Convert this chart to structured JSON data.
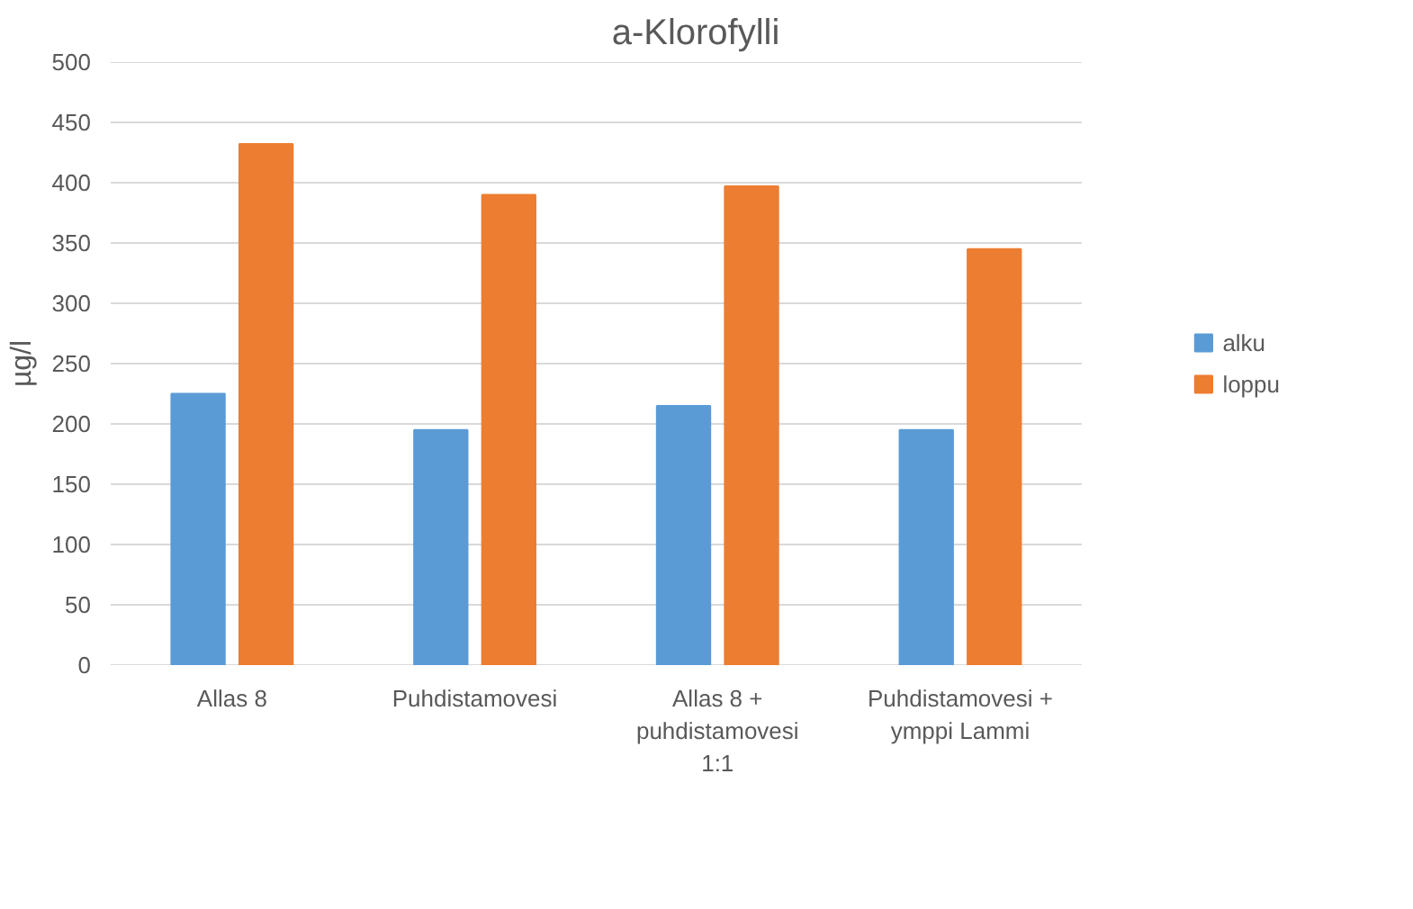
{
  "chart_data": {
    "type": "bar",
    "title": "a-Klorofylli",
    "ylabel": "µg/l",
    "categories": [
      "Allas 8",
      "Puhdistamovesi",
      "Allas 8 + puhdistamovesi 1:1",
      "Puhdistamovesi + ymppi Lammi"
    ],
    "series": [
      {
        "name": "alku",
        "color": "#5b9bd5",
        "values": [
          225,
          195,
          215,
          195
        ]
      },
      {
        "name": "loppu",
        "color": "#ed7d31",
        "values": [
          432,
          390,
          397,
          345
        ]
      }
    ],
    "ylim": [
      0,
      500
    ],
    "yticks": [
      0,
      50,
      100,
      150,
      200,
      250,
      300,
      350,
      400,
      450,
      500
    ],
    "grid": "y",
    "legend": "right"
  }
}
